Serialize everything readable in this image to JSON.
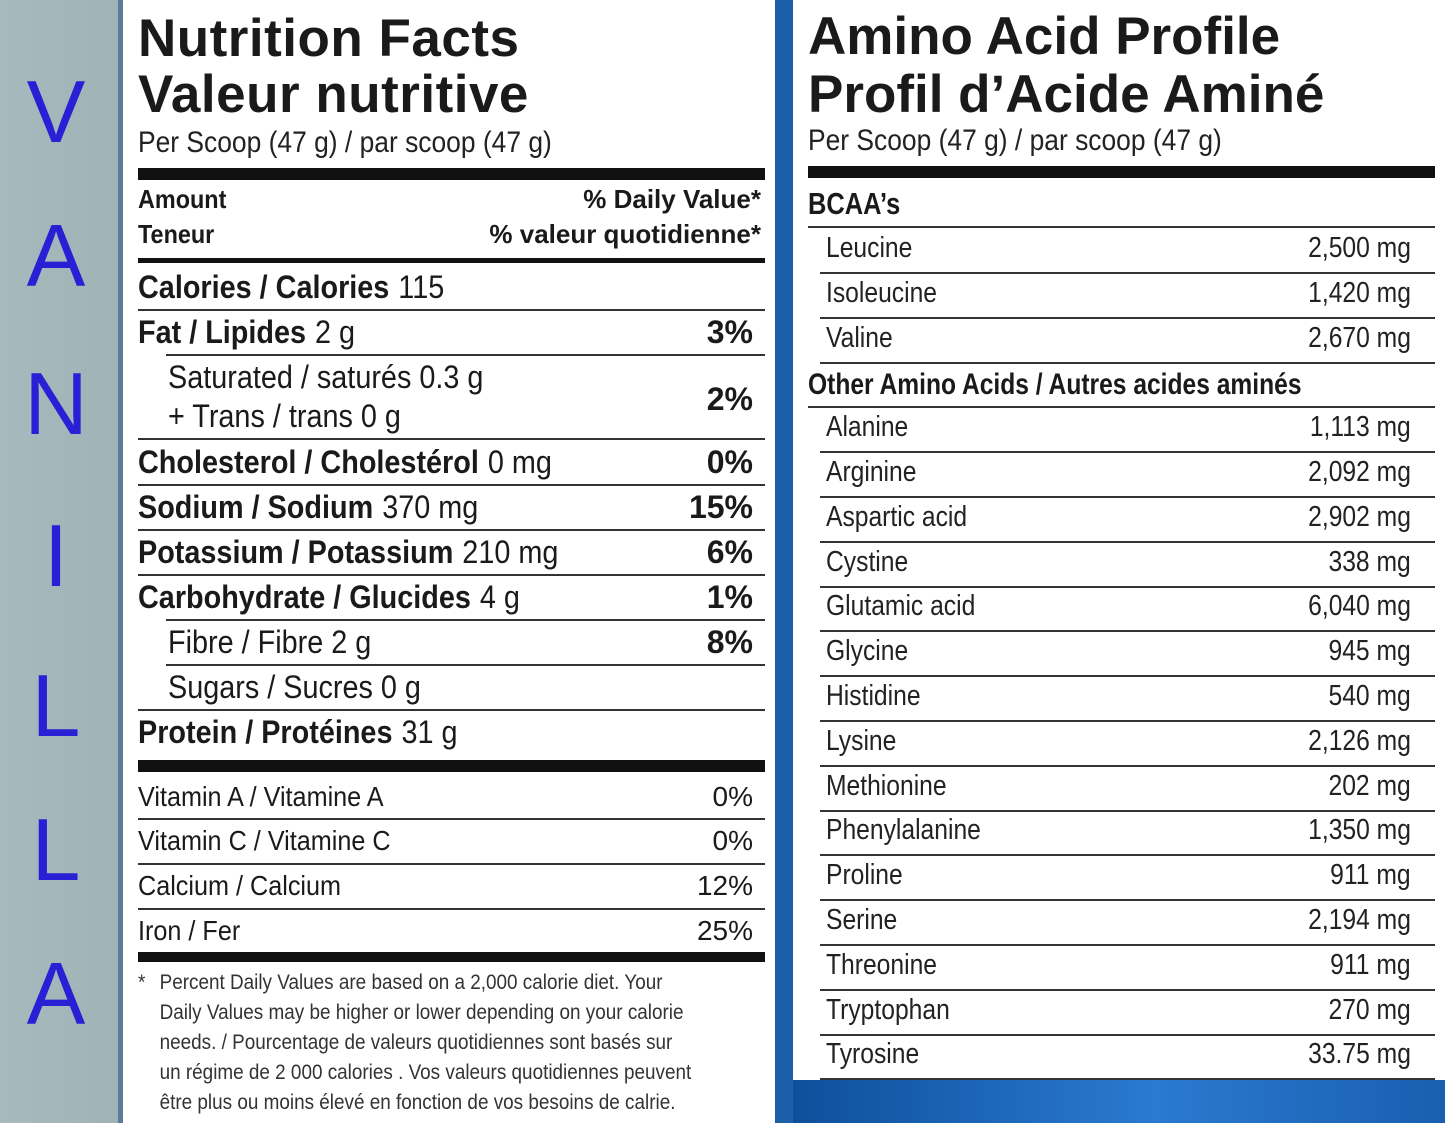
{
  "flavor_letters": [
    "V",
    "A",
    "N",
    "I",
    "L",
    "L",
    "A"
  ],
  "nutrition": {
    "title_en": "Nutrition Facts",
    "title_fr": "Valeur nutritive",
    "serving": "Per Scoop (47 g) / par scoop (47 g)",
    "amount_en": "Amount",
    "amount_fr": "Teneur",
    "dv_en": "% Daily Value*",
    "dv_fr": "% valeur quotidienne*",
    "rows": [
      {
        "label": "Calories / Calories",
        "amount": "115",
        "pct": ""
      },
      {
        "label": "Fat / Lipides",
        "amount": "2 g",
        "pct": "3%"
      },
      {
        "label": "Saturated / saturés  0.3 g",
        "amount": "",
        "pct": "2%"
      },
      {
        "label": "+ Trans / trans  0 g",
        "amount": "",
        "pct": ""
      },
      {
        "label": "Cholesterol / Cholestérol",
        "amount": "0 mg",
        "pct": "0%"
      },
      {
        "label": "Sodium / Sodium",
        "amount": "370 mg",
        "pct": "15%"
      },
      {
        "label": "Potassium / Potassium",
        "amount": "210 mg",
        "pct": "6%"
      },
      {
        "label": "Carbohydrate / Glucides",
        "amount": "4 g",
        "pct": "1%"
      },
      {
        "label": "Fibre / Fibre 2 g",
        "amount": "",
        "pct": "8%"
      },
      {
        "label": "Sugars / Sucres  0 g",
        "amount": "",
        "pct": ""
      },
      {
        "label": "Protein / Protéines",
        "amount": "31 g",
        "pct": ""
      }
    ],
    "vitamins": [
      {
        "label": "Vitamin A / Vitamine A",
        "pct": "0%"
      },
      {
        "label": "Vitamin C / Vitamine C",
        "pct": "0%"
      },
      {
        "label": "Calcium / Calcium",
        "pct": "12%"
      },
      {
        "label": "Iron / Fer",
        "pct": "25%"
      }
    ],
    "footnote_star": "*",
    "footnote": "Percent Daily Values are based on a 2,000 calorie diet. Your Daily Values may be higher or lower depending on your calorie needs. / Pourcentage de valeurs quotidiennes sont basés sur un régime de 2 000 calories . Vos valeurs quotidiennes peuvent être plus ou moins élevé en fonction de vos besoins de calrie."
  },
  "amino": {
    "title_en": "Amino Acid Profile",
    "title_fr": "Profil d’Acide Aminé",
    "serving": "Per Scoop (47 g) / par scoop (47 g)",
    "bcaa_title": "BCAA’s",
    "bcaa": [
      {
        "name": "Leucine",
        "value": "2,500 mg"
      },
      {
        "name": "Isoleucine",
        "value": "1,420 mg"
      },
      {
        "name": "Valine",
        "value": "2,670 mg"
      }
    ],
    "other_title": "Other Amino Acids / Autres acides aminés",
    "other": [
      {
        "name": "Alanine",
        "value": "1,113 mg"
      },
      {
        "name": "Arginine",
        "value": "2,092 mg"
      },
      {
        "name": "Aspartic acid",
        "value": "2,902 mg"
      },
      {
        "name": "Cystine",
        "value": "338 mg"
      },
      {
        "name": "Glutamic acid",
        "value": "6,040 mg"
      },
      {
        "name": "Glycine",
        "value": "945 mg"
      },
      {
        "name": "Histidine",
        "value": "540 mg"
      },
      {
        "name": "Lysine",
        "value": "2,126 mg"
      },
      {
        "name": "Methionine",
        "value": "202 mg"
      },
      {
        "name": "Phenylalanine",
        "value": "1,350 mg"
      },
      {
        "name": "Proline",
        "value": "911 mg"
      },
      {
        "name": "Serine",
        "value": "2,194 mg"
      },
      {
        "name": "Threonine",
        "value": "911 mg"
      },
      {
        "name": "Tryptophan",
        "value": "270 mg"
      },
      {
        "name": "Tyrosine",
        "value": "33.75 mg"
      }
    ]
  }
}
